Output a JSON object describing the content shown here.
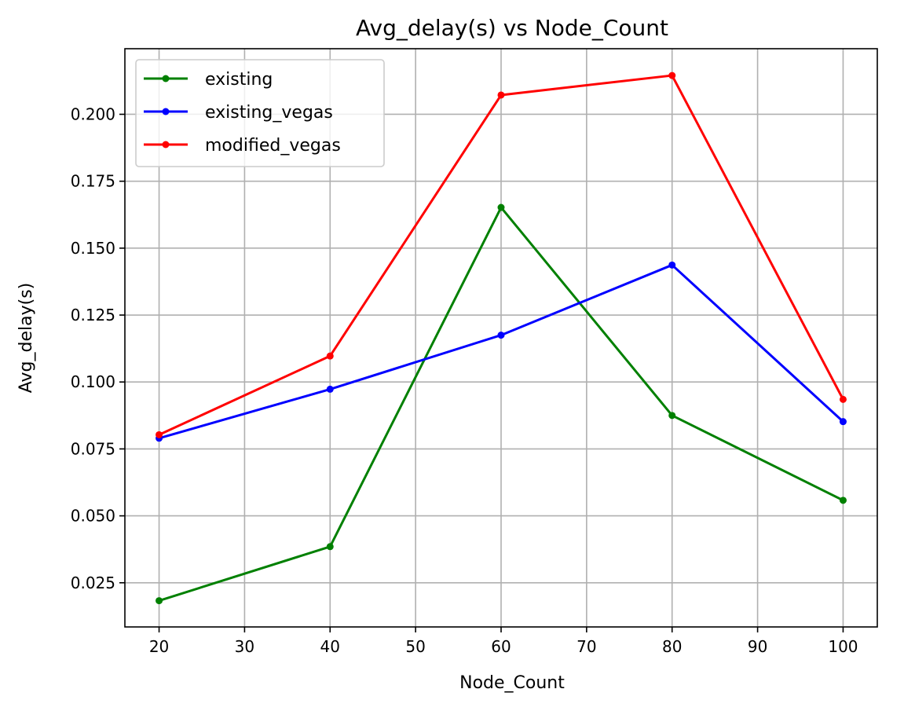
{
  "chart_data": {
    "type": "line",
    "title": "Avg_delay(s) vs Node_Count",
    "xlabel": "Node_Count",
    "ylabel": "Avg_delay(s)",
    "x": [
      20,
      40,
      60,
      80,
      100
    ],
    "xlim": [
      16,
      104
    ],
    "ylim": [
      0.0085,
      0.2245
    ],
    "xticks": [
      20,
      30,
      40,
      50,
      60,
      70,
      80,
      90,
      100
    ],
    "yticks": [
      0.025,
      0.05,
      0.075,
      0.1,
      0.125,
      0.15,
      0.175,
      0.2
    ],
    "xtick_labels": [
      "20",
      "30",
      "40",
      "50",
      "60",
      "70",
      "80",
      "90",
      "100"
    ],
    "ytick_labels": [
      "0.025",
      "0.050",
      "0.075",
      "0.100",
      "0.125",
      "0.150",
      "0.175",
      "0.200"
    ],
    "grid": true,
    "legend_position": "top-left",
    "series": [
      {
        "name": "existing",
        "color": "#008000",
        "values": [
          0.0183,
          0.0385,
          0.1652,
          0.0875,
          0.0558
        ]
      },
      {
        "name": "existing_vegas",
        "color": "#0000ff",
        "values": [
          0.079,
          0.0973,
          0.1175,
          0.1437,
          0.0852
        ]
      },
      {
        "name": "modified_vegas",
        "color": "#ff0000",
        "values": [
          0.0803,
          0.1097,
          0.2072,
          0.2145,
          0.0935
        ]
      }
    ]
  }
}
